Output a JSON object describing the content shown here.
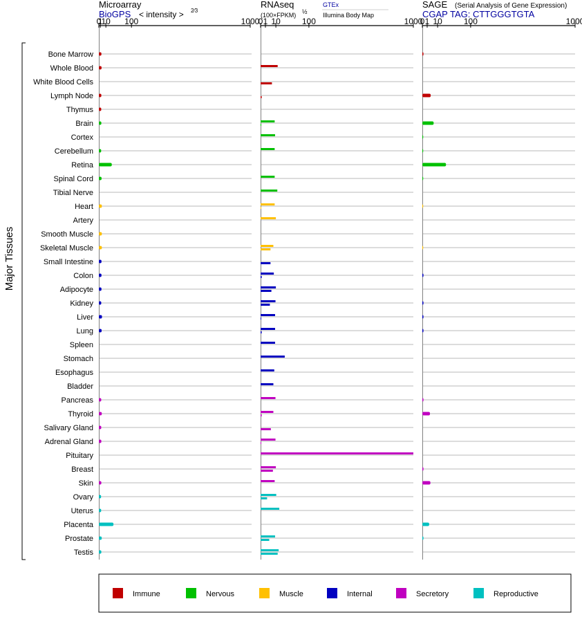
{
  "headers": {
    "microarray": {
      "title": "Microarray",
      "source": "BioGPS",
      "scale_label": "< intensity >",
      "scale_exponent": "2⁄3"
    },
    "rnaseq": {
      "title": "RNAseq",
      "unit": "(100×FPKM)",
      "unit_exponent": "½",
      "source_top": "GTEx",
      "source_bottom": "Illumina Body Map"
    },
    "sage": {
      "title": "SAGE",
      "subtitle": "(Serial Analysis of Gene Expression)",
      "tag": "CGAP TAG: CTTGGGTGTA"
    }
  },
  "y_axis_label": "Major Tissues",
  "colors": {
    "immune": "#c00000",
    "nervous": "#00c000",
    "muscle": "#ffc000",
    "internal": "#0000c0",
    "secretory": "#c000c0",
    "reproductive": "#00c0c0",
    "rnaseq_secondary": "#800080",
    "gridline": "#a0a0a0",
    "axis": "#000000"
  },
  "legend": [
    {
      "key": "immune",
      "label": "Immune"
    },
    {
      "key": "nervous",
      "label": "Nervous"
    },
    {
      "key": "muscle",
      "label": "Muscle"
    },
    {
      "key": "internal",
      "label": "Internal"
    },
    {
      "key": "secretory",
      "label": "Secretory"
    },
    {
      "key": "reproductive",
      "label": "Reproductive"
    }
  ],
  "chart_data": [
    {
      "type": "bar",
      "panel": "microarray",
      "scale": "power 2/3",
      "tick_labels": [
        "0",
        "1",
        "10",
        "100",
        "1000"
      ],
      "ticks": [
        0,
        1,
        10,
        100,
        1000
      ],
      "xlim": [
        0,
        1000
      ],
      "categories": [
        "Bone Marrow",
        "Whole Blood",
        "White Blood Cells",
        "Lymph Node",
        "Thymus",
        "Brain",
        "Cortex",
        "Cerebellum",
        "Retina",
        "Spinal Cord",
        "Tibial Nerve",
        "Heart",
        "Artery",
        "Smooth Muscle",
        "Skeletal Muscle",
        "Small Intestine",
        "Colon",
        "Adipocyte",
        "Kidney",
        "Liver",
        "Lung",
        "Spleen",
        "Stomach",
        "Esophagus",
        "Bladder",
        "Pancreas",
        "Thyroid",
        "Salivary Gland",
        "Adrenal Gland",
        "Pituitary",
        "Breast",
        "Skin",
        "Ovary",
        "Uterus",
        "Placenta",
        "Prostate",
        "Testis"
      ],
      "groups": [
        "immune",
        "immune",
        "immune",
        "immune",
        "immune",
        "nervous",
        "nervous",
        "nervous",
        "nervous",
        "nervous",
        "nervous",
        "muscle",
        "muscle",
        "muscle",
        "muscle",
        "internal",
        "internal",
        "internal",
        "internal",
        "internal",
        "internal",
        "internal",
        "internal",
        "internal",
        "internal",
        "secretory",
        "secretory",
        "secretory",
        "secretory",
        "secretory",
        "secretory",
        "secretory",
        "reproductive",
        "reproductive",
        "reproductive",
        "reproductive",
        "reproductive"
      ],
      "values": [
        2.2,
        2.4,
        null,
        2.1,
        2.0,
        2.1,
        null,
        1.9,
        25,
        2.4,
        null,
        2.8,
        null,
        2.8,
        2.8,
        2.3,
        2.3,
        2.3,
        2.0,
        3.0,
        2.5,
        null,
        null,
        null,
        null,
        2.0,
        2.7,
        2.0,
        2.1,
        null,
        null,
        2.1,
        1.8,
        1.9,
        30,
        2.6,
        2.1
      ]
    },
    {
      "type": "bar",
      "panel": "rnaseq",
      "scale": "power 1/2",
      "tick_labels": [
        "0",
        "1",
        "10",
        "100",
        "1000"
      ],
      "ticks": [
        0,
        1,
        10,
        100,
        1000
      ],
      "xlim": [
        0,
        1000
      ],
      "categories": [
        "Bone Marrow",
        "Whole Blood",
        "White Blood Cells",
        "Lymph Node",
        "Thymus",
        "Brain",
        "Cortex",
        "Cerebellum",
        "Retina",
        "Spinal Cord",
        "Tibial Nerve",
        "Heart",
        "Artery",
        "Smooth Muscle",
        "Skeletal Muscle",
        "Small Intestine",
        "Colon",
        "Adipocyte",
        "Kidney",
        "Liver",
        "Lung",
        "Spleen",
        "Stomach",
        "Esophagus",
        "Bladder",
        "Pancreas",
        "Thyroid",
        "Salivary Gland",
        "Adrenal Gland",
        "Pituitary",
        "Breast",
        "Skin",
        "Ovary",
        "Uterus",
        "Placenta",
        "Prostate",
        "Testis"
      ],
      "series": [
        {
          "name": "GTEx",
          "values": [
            null,
            12.5,
            null,
            null,
            null,
            8.5,
            9.0,
            8.5,
            null,
            8.5,
            12.0,
            8.5,
            10.0,
            null,
            7.0,
            null,
            7.5,
            10.0,
            9.5,
            9.0,
            9.0,
            9.0,
            25.0,
            8.0,
            7.0,
            9.5,
            7.0,
            null,
            9.5,
            1000,
            10.0,
            8.5,
            10.5,
            15.0,
            null,
            9.0,
            14.0
          ]
        },
        {
          "name": "Illumina Body Map",
          "values": [
            null,
            null,
            5.5,
            0.05,
            null,
            0.02,
            null,
            null,
            null,
            null,
            null,
            0.02,
            null,
            null,
            4.2,
            4.2,
            0.05,
            5.0,
            3.7,
            0.02,
            0.05,
            null,
            null,
            null,
            null,
            null,
            0.05,
            4.5,
            0.02,
            null,
            6.5,
            null,
            1.8,
            null,
            null,
            3.2,
            12.5
          ]
        }
      ]
    },
    {
      "type": "bar",
      "panel": "sage",
      "scale": "power 1/2",
      "tick_labels": [
        "0",
        "1",
        "10",
        "100",
        "1000"
      ],
      "ticks": [
        0,
        1,
        10,
        100,
        1000
      ],
      "xlim": [
        0,
        1000
      ],
      "categories": [
        "Bone Marrow",
        "Whole Blood",
        "White Blood Cells",
        "Lymph Node",
        "Thymus",
        "Brain",
        "Cortex",
        "Cerebellum",
        "Retina",
        "Spinal Cord",
        "Tibial Nerve",
        "Heart",
        "Artery",
        "Smooth Muscle",
        "Skeletal Muscle",
        "Small Intestine",
        "Colon",
        "Adipocyte",
        "Kidney",
        "Liver",
        "Lung",
        "Spleen",
        "Stomach",
        "Esophagus",
        "Bladder",
        "Pancreas",
        "Thyroid",
        "Salivary Gland",
        "Adrenal Gland",
        "Pituitary",
        "Breast",
        "Skin",
        "Ovary",
        "Uterus",
        "Placenta",
        "Prostate",
        "Testis"
      ],
      "values": [
        0.05,
        null,
        null,
        3.0,
        null,
        5.5,
        0.02,
        0.02,
        24.0,
        0.02,
        null,
        0.01,
        null,
        null,
        0.01,
        null,
        0.05,
        null,
        0.05,
        0.05,
        0.05,
        null,
        null,
        null,
        null,
        0.05,
        2.5,
        null,
        null,
        null,
        0.05,
        2.8,
        null,
        null,
        2.0,
        0.05,
        null
      ]
    }
  ]
}
